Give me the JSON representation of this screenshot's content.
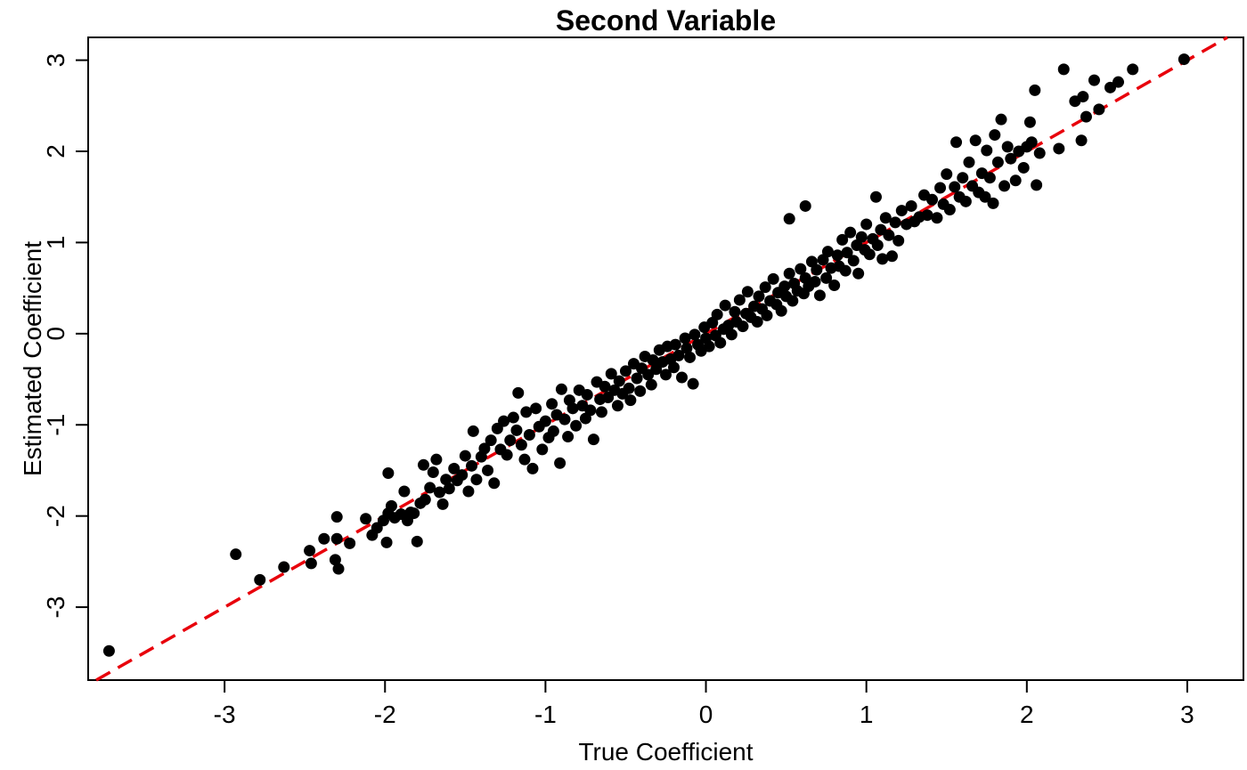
{
  "chart_data": {
    "type": "scatter",
    "title": "Second Variable",
    "xlabel": "True Coefficient",
    "ylabel": "Estimated Coefficient",
    "xlim": [
      -3.85,
      3.35
    ],
    "ylim": [
      -3.8,
      3.25
    ],
    "xticks": [
      -3,
      -2,
      -1,
      0,
      1,
      2,
      3
    ],
    "yticks": [
      -3,
      -2,
      -1,
      0,
      1,
      2,
      3
    ],
    "x_tick_labels": [
      "-3",
      "-2",
      "-1",
      "0",
      "1",
      "2",
      "3"
    ],
    "y_tick_labels": [
      "-3",
      "-2",
      "-1",
      "0",
      "1",
      "2",
      "3"
    ],
    "grid": false,
    "reference_line": {
      "type": "identity",
      "slope": 1,
      "intercept": 0,
      "style": "dashed",
      "color": "#e8000b"
    },
    "point_color": "#000000",
    "series": [
      {
        "points": [
          [
            -3.72,
            -3.48
          ],
          [
            -2.93,
            -2.42
          ],
          [
            -2.78,
            -2.7
          ],
          [
            -2.63,
            -2.56
          ],
          [
            -2.47,
            -2.38
          ],
          [
            -2.46,
            -2.52
          ],
          [
            -2.38,
            -2.25
          ],
          [
            -2.31,
            -2.48
          ],
          [
            -2.3,
            -2.25
          ],
          [
            -2.29,
            -2.58
          ],
          [
            -2.3,
            -2.01
          ],
          [
            -2.22,
            -2.3
          ],
          [
            -2.12,
            -2.03
          ],
          [
            -2.08,
            -2.21
          ],
          [
            -2.05,
            -2.13
          ],
          [
            -2.01,
            -2.05
          ],
          [
            -1.99,
            -2.29
          ],
          [
            -1.98,
            -1.97
          ],
          [
            -1.98,
            -1.53
          ],
          [
            -1.96,
            -1.89
          ],
          [
            -1.94,
            -2.02
          ],
          [
            -1.9,
            -1.98
          ],
          [
            -1.88,
            -1.73
          ],
          [
            -1.86,
            -2.05
          ],
          [
            -1.84,
            -1.96
          ],
          [
            -1.82,
            -1.97
          ],
          [
            -1.8,
            -2.28
          ],
          [
            -1.78,
            -1.86
          ],
          [
            -1.76,
            -1.44
          ],
          [
            -1.75,
            -1.82
          ],
          [
            -1.72,
            -1.69
          ],
          [
            -1.7,
            -1.52
          ],
          [
            -1.68,
            -1.38
          ],
          [
            -1.66,
            -1.74
          ],
          [
            -1.64,
            -1.87
          ],
          [
            -1.62,
            -1.6
          ],
          [
            -1.6,
            -1.7
          ],
          [
            -1.57,
            -1.48
          ],
          [
            -1.55,
            -1.61
          ],
          [
            -1.52,
            -1.55
          ],
          [
            -1.5,
            -1.34
          ],
          [
            -1.48,
            -1.73
          ],
          [
            -1.46,
            -1.45
          ],
          [
            -1.45,
            -1.07
          ],
          [
            -1.43,
            -1.6
          ],
          [
            -1.4,
            -1.35
          ],
          [
            -1.38,
            -1.26
          ],
          [
            -1.36,
            -1.5
          ],
          [
            -1.34,
            -1.17
          ],
          [
            -1.32,
            -1.64
          ],
          [
            -1.3,
            -1.04
          ],
          [
            -1.28,
            -1.27
          ],
          [
            -1.26,
            -0.96
          ],
          [
            -1.24,
            -1.33
          ],
          [
            -1.22,
            -1.17
          ],
          [
            -1.2,
            -0.92
          ],
          [
            -1.18,
            -1.06
          ],
          [
            -1.17,
            -0.65
          ],
          [
            -1.15,
            -1.22
          ],
          [
            -1.13,
            -1.38
          ],
          [
            -1.12,
            -0.86
          ],
          [
            -1.1,
            -1.11
          ],
          [
            -1.08,
            -1.48
          ],
          [
            -1.06,
            -0.82
          ],
          [
            -1.04,
            -1.02
          ],
          [
            -1.02,
            -1.27
          ],
          [
            -1.0,
            -0.96
          ],
          [
            -0.98,
            -1.14
          ],
          [
            -0.96,
            -0.77
          ],
          [
            -0.95,
            -1.07
          ],
          [
            -0.93,
            -0.89
          ],
          [
            -0.91,
            -1.42
          ],
          [
            -0.9,
            -0.61
          ],
          [
            -0.88,
            -0.94
          ],
          [
            -0.86,
            -1.13
          ],
          [
            -0.85,
            -0.73
          ],
          [
            -0.83,
            -0.82
          ],
          [
            -0.81,
            -1.01
          ],
          [
            -0.79,
            -0.62
          ],
          [
            -0.77,
            -0.79
          ],
          [
            -0.75,
            -0.93
          ],
          [
            -0.74,
            -0.67
          ],
          [
            -0.72,
            -0.84
          ],
          [
            -0.7,
            -1.16
          ],
          [
            -0.68,
            -0.53
          ],
          [
            -0.66,
            -0.72
          ],
          [
            -0.65,
            -0.86
          ],
          [
            -0.63,
            -0.58
          ],
          [
            -0.61,
            -0.7
          ],
          [
            -0.59,
            -0.44
          ],
          [
            -0.57,
            -0.62
          ],
          [
            -0.55,
            -0.79
          ],
          [
            -0.54,
            -0.52
          ],
          [
            -0.52,
            -0.66
          ],
          [
            -0.5,
            -0.41
          ],
          [
            -0.48,
            -0.6
          ],
          [
            -0.47,
            -0.73
          ],
          [
            -0.45,
            -0.33
          ],
          [
            -0.43,
            -0.49
          ],
          [
            -0.41,
            -0.63
          ],
          [
            -0.4,
            -0.38
          ],
          [
            -0.38,
            -0.25
          ],
          [
            -0.36,
            -0.45
          ],
          [
            -0.34,
            -0.56
          ],
          [
            -0.33,
            -0.29
          ],
          [
            -0.31,
            -0.39
          ],
          [
            -0.29,
            -0.18
          ],
          [
            -0.27,
            -0.31
          ],
          [
            -0.25,
            -0.45
          ],
          [
            -0.24,
            -0.14
          ],
          [
            -0.22,
            -0.28
          ],
          [
            -0.2,
            -0.37
          ],
          [
            -0.19,
            -0.12
          ],
          [
            -0.17,
            -0.24
          ],
          [
            -0.15,
            -0.48
          ],
          [
            -0.13,
            -0.05
          ],
          [
            -0.12,
            -0.16
          ],
          [
            -0.1,
            -0.26
          ],
          [
            -0.08,
            -0.55
          ],
          [
            -0.07,
            -0.01
          ],
          [
            -0.05,
            -0.12
          ],
          [
            -0.03,
            -0.19
          ],
          [
            -0.01,
            0.07
          ],
          [
            0.0,
            -0.05
          ],
          [
            0.02,
            -0.14
          ],
          [
            0.04,
            0.12
          ],
          [
            0.06,
            -0.02
          ],
          [
            0.07,
            0.21
          ],
          [
            0.09,
            -0.1
          ],
          [
            0.11,
            0.05
          ],
          [
            0.12,
            0.31
          ],
          [
            0.14,
            0.09
          ],
          [
            0.16,
            -0.01
          ],
          [
            0.18,
            0.24
          ],
          [
            0.19,
            0.13
          ],
          [
            0.21,
            0.37
          ],
          [
            0.23,
            0.08
          ],
          [
            0.25,
            0.22
          ],
          [
            0.26,
            0.46
          ],
          [
            0.28,
            0.18
          ],
          [
            0.3,
            0.3
          ],
          [
            0.32,
            0.13
          ],
          [
            0.33,
            0.41
          ],
          [
            0.35,
            0.27
          ],
          [
            0.37,
            0.51
          ],
          [
            0.38,
            0.2
          ],
          [
            0.4,
            0.36
          ],
          [
            0.42,
            0.6
          ],
          [
            0.44,
            0.32
          ],
          [
            0.45,
            0.45
          ],
          [
            0.47,
            0.25
          ],
          [
            0.49,
            0.52
          ],
          [
            0.5,
            0.41
          ],
          [
            0.52,
            0.66
          ],
          [
            0.54,
            0.36
          ],
          [
            0.55,
            0.55
          ],
          [
            0.57,
            0.47
          ],
          [
            0.59,
            0.71
          ],
          [
            0.61,
            0.44
          ],
          [
            0.62,
            0.61
          ],
          [
            0.62,
            1.4
          ],
          [
            0.52,
            1.26
          ],
          [
            0.64,
            0.52
          ],
          [
            0.66,
            0.79
          ],
          [
            0.68,
            0.57
          ],
          [
            0.69,
            0.7
          ],
          [
            0.71,
            0.42
          ],
          [
            0.73,
            0.81
          ],
          [
            0.75,
            0.61
          ],
          [
            0.76,
            0.9
          ],
          [
            0.78,
            0.72
          ],
          [
            0.8,
            0.53
          ],
          [
            0.82,
            0.86
          ],
          [
            0.83,
            0.74
          ],
          [
            0.85,
            1.03
          ],
          [
            0.87,
            0.69
          ],
          [
            0.88,
            0.89
          ],
          [
            0.9,
            1.11
          ],
          [
            0.92,
            0.8
          ],
          [
            0.94,
            0.97
          ],
          [
            0.95,
            0.66
          ],
          [
            0.97,
            1.06
          ],
          [
            0.99,
            0.92
          ],
          [
            1.0,
            1.2
          ],
          [
            1.02,
            0.87
          ],
          [
            1.04,
            1.04
          ],
          [
            1.06,
            1.5
          ],
          [
            1.07,
            0.97
          ],
          [
            1.09,
            1.14
          ],
          [
            1.1,
            0.82
          ],
          [
            1.12,
            1.27
          ],
          [
            1.14,
            1.08
          ],
          [
            1.16,
            0.85
          ],
          [
            1.18,
            1.22
          ],
          [
            1.2,
            1.02
          ],
          [
            1.22,
            1.35
          ],
          [
            1.25,
            1.2
          ],
          [
            1.28,
            1.4
          ],
          [
            1.3,
            1.23
          ],
          [
            1.33,
            1.28
          ],
          [
            1.36,
            1.52
          ],
          [
            1.38,
            1.3
          ],
          [
            1.41,
            1.47
          ],
          [
            1.44,
            1.27
          ],
          [
            1.46,
            1.6
          ],
          [
            1.48,
            1.42
          ],
          [
            1.5,
            1.75
          ],
          [
            1.52,
            1.36
          ],
          [
            1.55,
            1.61
          ],
          [
            1.56,
            2.1
          ],
          [
            1.58,
            1.5
          ],
          [
            1.6,
            1.71
          ],
          [
            1.62,
            1.45
          ],
          [
            1.64,
            1.88
          ],
          [
            1.66,
            1.62
          ],
          [
            1.68,
            2.12
          ],
          [
            1.7,
            1.55
          ],
          [
            1.72,
            1.76
          ],
          [
            1.74,
            1.5
          ],
          [
            1.75,
            2.01
          ],
          [
            1.77,
            1.71
          ],
          [
            1.79,
            1.43
          ],
          [
            1.8,
            2.18
          ],
          [
            1.82,
            1.88
          ],
          [
            1.84,
            2.35
          ],
          [
            1.86,
            1.62
          ],
          [
            1.88,
            2.05
          ],
          [
            1.9,
            1.92
          ],
          [
            1.93,
            1.68
          ],
          [
            1.95,
            2.0
          ],
          [
            1.98,
            1.82
          ],
          [
            2.0,
            2.05
          ],
          [
            2.02,
            2.32
          ],
          [
            2.03,
            2.1
          ],
          [
            2.05,
            2.67
          ],
          [
            2.06,
            1.63
          ],
          [
            2.08,
            1.98
          ],
          [
            2.2,
            2.03
          ],
          [
            2.23,
            2.9
          ],
          [
            2.3,
            2.55
          ],
          [
            2.34,
            2.12
          ],
          [
            2.35,
            2.6
          ],
          [
            2.37,
            2.38
          ],
          [
            2.42,
            2.78
          ],
          [
            2.45,
            2.46
          ],
          [
            2.52,
            2.7
          ],
          [
            2.57,
            2.76
          ],
          [
            2.66,
            2.9
          ],
          [
            2.98,
            3.01
          ]
        ]
      }
    ]
  }
}
